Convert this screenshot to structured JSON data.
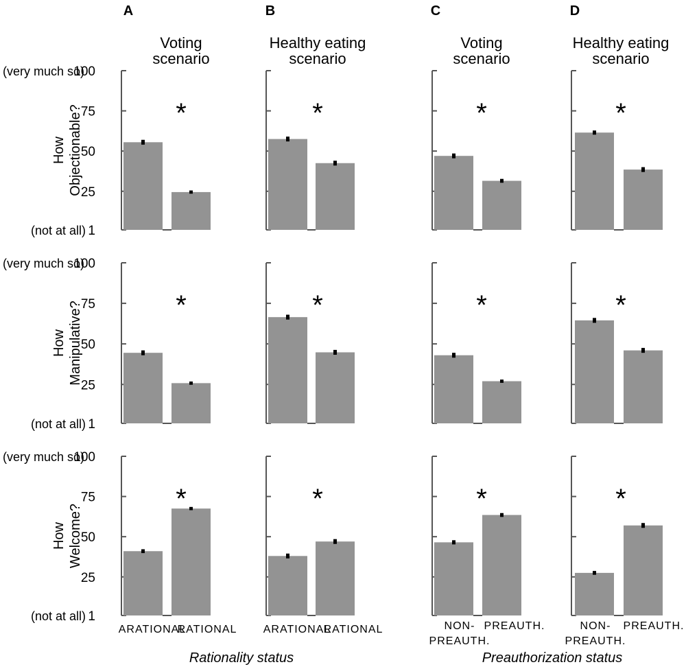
{
  "panels": [
    {
      "letter": "A",
      "title": [
        "Voting",
        "scenario"
      ],
      "categories": [
        [
          "ARATIONAL"
        ],
        [
          "RATIONAL"
        ]
      ]
    },
    {
      "letter": "B",
      "title": [
        "Healthy eating",
        "scenario"
      ],
      "categories": [
        [
          "ARATIONAL"
        ],
        [
          "RATIONAL"
        ]
      ]
    },
    {
      "letter": "C",
      "title": [
        "Voting",
        "scenario"
      ],
      "categories": [
        [
          "NON-",
          "PREAUTH."
        ],
        [
          "PREAUTH."
        ]
      ]
    },
    {
      "letter": "D",
      "title": [
        "Healthy eating",
        "scenario"
      ],
      "categories": [
        [
          "NON-",
          "PREAUTH."
        ],
        [
          "PREAUTH."
        ]
      ]
    }
  ],
  "rows": [
    {
      "ylabel": [
        "How",
        "Objectionable?"
      ]
    },
    {
      "ylabel": [
        "How",
        "Manipulative?"
      ]
    },
    {
      "ylabel": [
        "How",
        "Welcome?"
      ]
    }
  ],
  "y_anchor_top": "(very much so)",
  "y_anchor_bottom": "(not at all)",
  "significance_marker": "*",
  "bottom_labels": {
    "left": "Rationality status",
    "right": "Preauthorization status"
  },
  "colors": {
    "bar": "#939393",
    "error": "#000000",
    "axis": "#555555"
  },
  "chart_data": {
    "type": "bar",
    "yticks": [
      1,
      25,
      50,
      75,
      100
    ],
    "ylim": [
      1,
      100
    ],
    "values": [
      [
        [
          55.5,
          24.5
        ],
        [
          57.5,
          42.5
        ],
        [
          47,
          31.5
        ],
        [
          61.5,
          38.5
        ]
      ],
      [
        [
          44.5,
          25.8
        ],
        [
          66.5,
          44.8
        ],
        [
          43,
          27
        ],
        [
          64.5,
          46
        ]
      ],
      [
        [
          41,
          67.5
        ],
        [
          38,
          47
        ],
        [
          46.5,
          63.5
        ],
        [
          27.5,
          57
        ]
      ]
    ],
    "errors": [
      [
        [
          1.5,
          1.0
        ],
        [
          1.5,
          1.5
        ],
        [
          1.5,
          1.2
        ],
        [
          1.3,
          1.5
        ]
      ],
      [
        [
          1.5,
          1.0
        ],
        [
          1.5,
          1.5
        ],
        [
          1.5,
          1.0
        ],
        [
          1.5,
          1.5
        ]
      ],
      [
        [
          1.2,
          1.0
        ],
        [
          1.5,
          1.5
        ],
        [
          1.3,
          1.2
        ],
        [
          1.2,
          1.5
        ]
      ]
    ]
  }
}
